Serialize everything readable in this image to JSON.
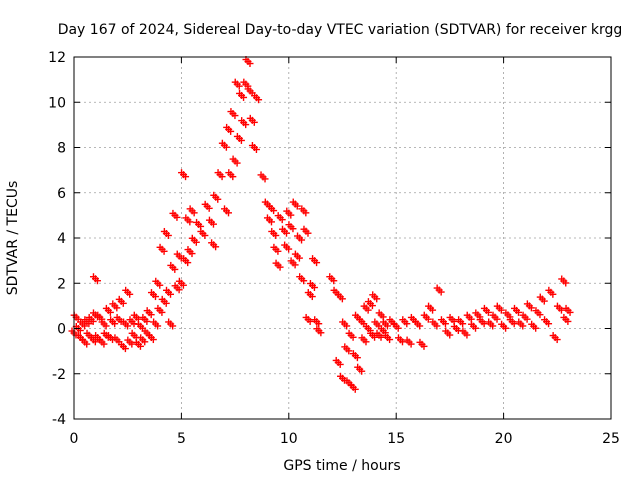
{
  "chart_data": {
    "type": "scatter",
    "title": "Day 167 of 2024, Sidereal Day-to-day VTEC variation (SDTVAR) for receiver krgg",
    "xlabel": "GPS time / hours",
    "ylabel": "SDTVAR / TECUs",
    "xlim": [
      0,
      25
    ],
    "ylim": [
      -4,
      12
    ],
    "xticks": [
      "0",
      "5",
      "10",
      "15",
      "20",
      "25"
    ],
    "yticks": [
      "-4",
      "-2",
      "0",
      "2",
      "4",
      "6",
      "8",
      "10",
      "12"
    ],
    "grid": true,
    "marker": "plus",
    "color": "#ff0000",
    "series": [
      {
        "name": "SDTVAR",
        "points": [
          [
            0.0,
            -0.2
          ],
          [
            0.1,
            0.5
          ],
          [
            0.2,
            0.0
          ],
          [
            0.3,
            -0.4
          ],
          [
            0.4,
            0.2
          ],
          [
            0.5,
            -0.6
          ],
          [
            0.6,
            0.3
          ],
          [
            0.7,
            -0.3
          ],
          [
            0.8,
            0.4
          ],
          [
            0.9,
            -0.5
          ],
          [
            1.0,
            0.6
          ],
          [
            1.0,
            2.2
          ],
          [
            1.1,
            -0.4
          ],
          [
            1.2,
            0.5
          ],
          [
            1.3,
            -0.6
          ],
          [
            1.4,
            0.2
          ],
          [
            1.5,
            -0.3
          ],
          [
            1.6,
            0.8
          ],
          [
            1.7,
            -0.4
          ],
          [
            1.8,
            0.3
          ],
          [
            1.9,
            1.0
          ],
          [
            2.0,
            -0.5
          ],
          [
            2.1,
            0.4
          ],
          [
            2.2,
            1.2
          ],
          [
            2.3,
            -0.8
          ],
          [
            2.4,
            0.2
          ],
          [
            2.5,
            1.6
          ],
          [
            2.6,
            -0.6
          ],
          [
            2.7,
            0.3
          ],
          [
            2.8,
            -0.3
          ],
          [
            2.9,
            0.5
          ],
          [
            3.0,
            -0.7
          ],
          [
            3.1,
            0.1
          ],
          [
            3.2,
            -0.5
          ],
          [
            3.3,
            0.4
          ],
          [
            3.4,
            -0.2
          ],
          [
            3.5,
            0.7
          ],
          [
            3.6,
            -0.4
          ],
          [
            3.7,
            1.5
          ],
          [
            3.8,
            0.2
          ],
          [
            3.9,
            2.0
          ],
          [
            4.0,
            0.8
          ],
          [
            4.1,
            3.5
          ],
          [
            4.2,
            1.2
          ],
          [
            4.3,
            4.2
          ],
          [
            4.4,
            1.6
          ],
          [
            4.5,
            0.2
          ],
          [
            4.6,
            2.7
          ],
          [
            4.7,
            5.0
          ],
          [
            4.8,
            1.8
          ],
          [
            4.9,
            3.2
          ],
          [
            5.0,
            2.0
          ],
          [
            5.1,
            6.8
          ],
          [
            5.2,
            3.0
          ],
          [
            5.3,
            4.8
          ],
          [
            5.4,
            3.4
          ],
          [
            5.5,
            5.2
          ],
          [
            5.6,
            3.9
          ],
          [
            5.8,
            4.6
          ],
          [
            6.0,
            4.2
          ],
          [
            6.2,
            5.4
          ],
          [
            6.4,
            4.7
          ],
          [
            6.5,
            3.7
          ],
          [
            6.6,
            5.8
          ],
          [
            6.8,
            6.8
          ],
          [
            7.0,
            8.1
          ],
          [
            7.1,
            5.2
          ],
          [
            7.2,
            8.8
          ],
          [
            7.3,
            6.8
          ],
          [
            7.4,
            9.5
          ],
          [
            7.5,
            7.4
          ],
          [
            7.6,
            10.8
          ],
          [
            7.7,
            8.4
          ],
          [
            7.8,
            10.3
          ],
          [
            7.9,
            9.1
          ],
          [
            8.0,
            10.8
          ],
          [
            8.1,
            11.8
          ],
          [
            8.2,
            10.5
          ],
          [
            8.3,
            9.2
          ],
          [
            8.4,
            8.0
          ],
          [
            8.5,
            10.2
          ],
          [
            8.8,
            6.7
          ],
          [
            9.0,
            5.5
          ],
          [
            9.1,
            4.8
          ],
          [
            9.2,
            5.3
          ],
          [
            9.3,
            4.2
          ],
          [
            9.4,
            3.5
          ],
          [
            9.5,
            2.8
          ],
          [
            9.6,
            4.9
          ],
          [
            9.8,
            4.3
          ],
          [
            9.9,
            3.6
          ],
          [
            10.0,
            5.1
          ],
          [
            10.1,
            4.5
          ],
          [
            10.2,
            2.9
          ],
          [
            10.3,
            5.5
          ],
          [
            10.4,
            3.2
          ],
          [
            10.5,
            4.0
          ],
          [
            10.6,
            2.2
          ],
          [
            10.7,
            5.2
          ],
          [
            10.8,
            4.3
          ],
          [
            10.9,
            0.4
          ],
          [
            11.0,
            1.5
          ],
          [
            11.1,
            1.9
          ],
          [
            11.2,
            3.0
          ],
          [
            11.3,
            0.3
          ],
          [
            11.4,
            -0.1
          ],
          [
            12.0,
            2.2
          ],
          [
            12.2,
            1.6
          ],
          [
            12.3,
            -1.5
          ],
          [
            12.4,
            1.4
          ],
          [
            12.5,
            -2.2
          ],
          [
            12.6,
            0.2
          ],
          [
            12.7,
            -0.9
          ],
          [
            12.8,
            -2.4
          ],
          [
            12.9,
            -0.3
          ],
          [
            13.0,
            -2.6
          ],
          [
            13.1,
            -1.2
          ],
          [
            13.2,
            0.5
          ],
          [
            13.3,
            -1.8
          ],
          [
            13.4,
            0.3
          ],
          [
            13.5,
            -0.5
          ],
          [
            13.6,
            0.9
          ],
          [
            13.7,
            0.0
          ],
          [
            13.8,
            1.1
          ],
          [
            13.9,
            -0.3
          ],
          [
            14.0,
            1.4
          ],
          [
            14.1,
            0.2
          ],
          [
            14.2,
            -0.3
          ],
          [
            14.3,
            0.6
          ],
          [
            14.4,
            -0.1
          ],
          [
            14.5,
            0.2
          ],
          [
            14.6,
            -0.4
          ],
          [
            14.8,
            0.3
          ],
          [
            15.0,
            0.1
          ],
          [
            15.2,
            -0.5
          ],
          [
            15.4,
            0.3
          ],
          [
            15.6,
            -0.6
          ],
          [
            15.8,
            0.4
          ],
          [
            16.0,
            0.2
          ],
          [
            16.2,
            -0.7
          ],
          [
            16.4,
            0.5
          ],
          [
            16.6,
            0.9
          ],
          [
            16.8,
            0.2
          ],
          [
            17.0,
            1.7
          ],
          [
            17.2,
            0.3
          ],
          [
            17.4,
            -0.2
          ],
          [
            17.6,
            0.4
          ],
          [
            17.8,
            0.0
          ],
          [
            18.0,
            0.3
          ],
          [
            18.2,
            -0.2
          ],
          [
            18.4,
            0.5
          ],
          [
            18.6,
            0.1
          ],
          [
            18.8,
            0.6
          ],
          [
            19.0,
            0.3
          ],
          [
            19.2,
            0.8
          ],
          [
            19.4,
            0.2
          ],
          [
            19.6,
            0.5
          ],
          [
            19.8,
            0.9
          ],
          [
            20.0,
            0.1
          ],
          [
            20.2,
            0.6
          ],
          [
            20.4,
            0.3
          ],
          [
            20.6,
            0.8
          ],
          [
            20.8,
            0.2
          ],
          [
            21.0,
            0.5
          ],
          [
            21.2,
            1.0
          ],
          [
            21.4,
            0.1
          ],
          [
            21.6,
            0.7
          ],
          [
            21.8,
            1.3
          ],
          [
            22.0,
            0.3
          ],
          [
            22.2,
            1.6
          ],
          [
            22.4,
            -0.4
          ],
          [
            22.6,
            0.9
          ],
          [
            22.8,
            2.1
          ],
          [
            22.9,
            0.4
          ],
          [
            23.0,
            0.8
          ]
        ]
      }
    ]
  }
}
